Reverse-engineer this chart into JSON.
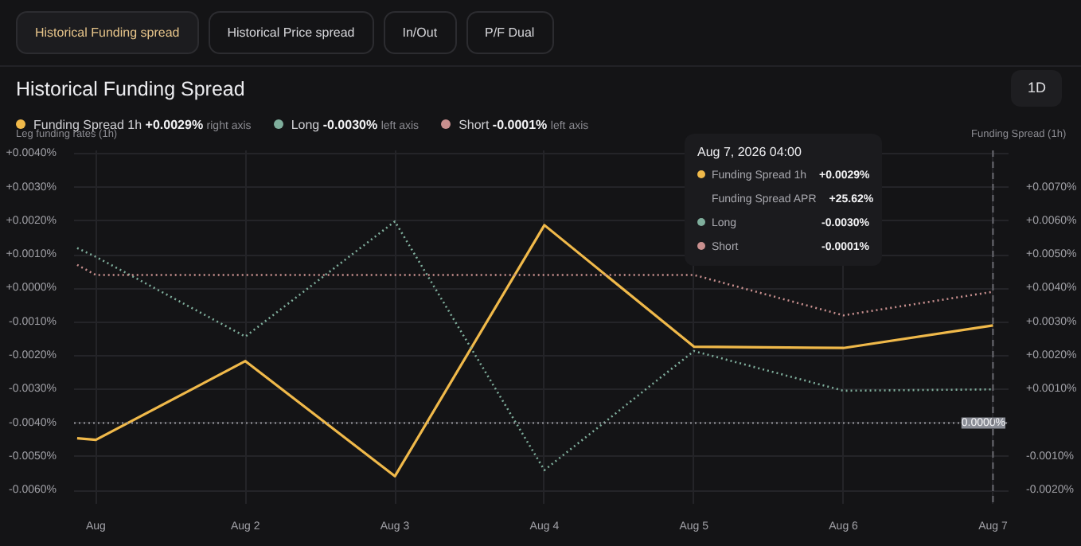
{
  "chart_data": {
    "type": "line",
    "title": "Historical Funding Spread",
    "ylabel": "Leg funding rates (1h)",
    "y2label": "Funding Spread (1h)",
    "x": [
      "2026-08-01T01:00",
      "2026-08-01T04:00",
      "2026-08-02T04:00",
      "2026-08-03T04:00",
      "2026-08-04T04:00",
      "2026-08-05T04:00",
      "2026-08-06T04:00",
      "2026-08-07T04:00"
    ],
    "series": [
      {
        "name": "Funding Spread 1h",
        "color": "#f0b94a",
        "axis": "y2",
        "line_style": "solid",
        "values": [
          -0.00045,
          -0.0005,
          0.00184,
          -0.00158,
          0.00588,
          0.00227,
          0.00223,
          0.0029
        ]
      },
      {
        "name": "Long",
        "color": "#7fae9c",
        "line_style": "dotted",
        "values": [
          0.0012,
          0.00094,
          -0.00143,
          0.00199,
          -0.0054,
          -0.00186,
          -0.00304,
          -0.003
        ]
      },
      {
        "name": "Short",
        "color": "#c9908f",
        "line_style": "dotted",
        "values": [
          0.0007,
          0.0004,
          0.0004,
          0.0004,
          0.0004,
          0.0004,
          -0.0008,
          -0.0001
        ]
      }
    ],
    "xlim": [
      "2026-08-01T00:30",
      "2026-08-07T06:30"
    ],
    "xticks": [
      {
        "value": "2026-08-01T04:00",
        "label": "Aug"
      },
      {
        "value": "2026-08-02T04:00",
        "label": "Aug 2"
      },
      {
        "value": "2026-08-03T04:00",
        "label": "Aug 3"
      },
      {
        "value": "2026-08-04T04:00",
        "label": "Aug 4"
      },
      {
        "value": "2026-08-05T04:00",
        "label": "Aug 5"
      },
      {
        "value": "2026-08-06T04:00",
        "label": "Aug 6"
      },
      {
        "value": "2026-08-07T04:00",
        "label": "Aug 7"
      }
    ],
    "ylim": [
      -0.0064,
      0.0041
    ],
    "yticks": [
      {
        "value": 0.004,
        "label": "+0.0040%"
      },
      {
        "value": 0.003,
        "label": "+0.0030%"
      },
      {
        "value": 0.002,
        "label": "+0.0020%"
      },
      {
        "value": 0.001,
        "label": "+0.0010%"
      },
      {
        "value": 0,
        "label": "+0.0000%"
      },
      {
        "value": -0.001,
        "label": "-0.0010%"
      },
      {
        "value": -0.002,
        "label": "-0.0020%"
      },
      {
        "value": -0.003,
        "label": "-0.0030%"
      },
      {
        "value": -0.004,
        "label": "-0.0040%"
      },
      {
        "value": -0.005,
        "label": "-0.0050%"
      },
      {
        "value": -0.006,
        "label": "-0.0060%"
      }
    ],
    "y2lim": [
      -0.0024,
      0.0081
    ],
    "y2ticks": [
      {
        "value": 0.007,
        "label": "+0.0070%"
      },
      {
        "value": 0.006,
        "label": "+0.0060%"
      },
      {
        "value": 0.005,
        "label": "+0.0050%"
      },
      {
        "value": 0.004,
        "label": "+0.0040%"
      },
      {
        "value": 0.003,
        "label": "+0.0030%"
      },
      {
        "value": 0.002,
        "label": "+0.0020%"
      },
      {
        "value": 0.001,
        "label": "+0.0010%"
      },
      {
        "value": -0.001,
        "label": "-0.0010%"
      },
      {
        "value": -0.002,
        "label": "-0.0020%"
      }
    ],
    "ref_lines": [
      {
        "axis": "y2",
        "value": 0,
        "label": "0.0000%",
        "color": "#9a9aa0",
        "line_style": "dotted"
      },
      {
        "axis": "x",
        "value": "2026-08-07T04:00",
        "color": "#6a6a70",
        "line_style": "dashed"
      }
    ],
    "grid": true,
    "legend": "top",
    "marker": "none",
    "annotations": [
      "Historical Funding spread",
      "Historical Price spread",
      "In/Out",
      "P/F Dual",
      "1D",
      "+0.0029%",
      "right axis",
      "-0.0030%",
      "left axis",
      "-0.0001%",
      "left axis",
      "Aug 7, 2026 04:00",
      "Funding Spread 1h",
      "+0.0029%",
      "Funding Spread APR",
      "+25.62%",
      "Long",
      "-0.0030%",
      "Short",
      "-0.0001%"
    ]
  }
}
